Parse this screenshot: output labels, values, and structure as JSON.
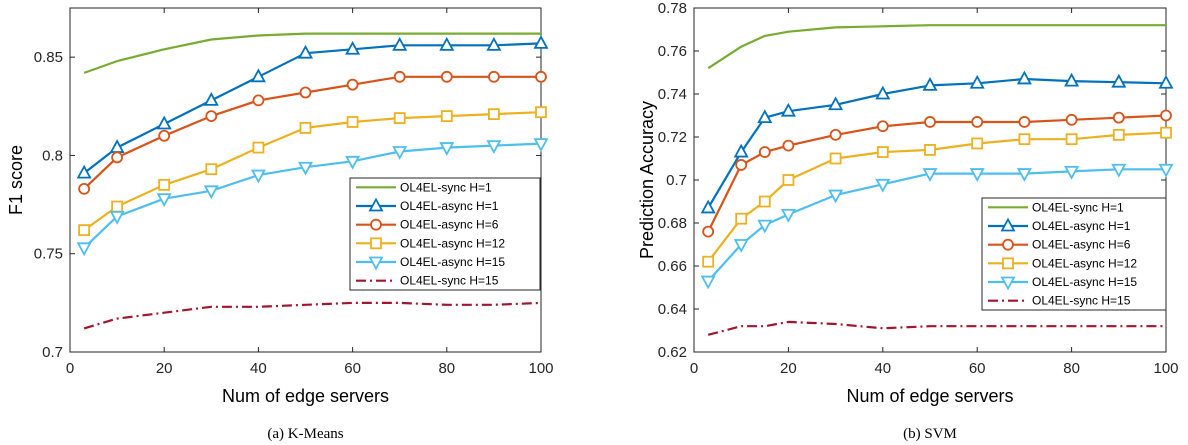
{
  "chart_data": [
    {
      "type": "line",
      "caption": "(a)  K-Means",
      "xlabel": "Num of edge servers",
      "ylabel": "F1 score",
      "xlim": [
        0,
        100
      ],
      "ylim": [
        0.7,
        0.875
      ],
      "xticks": [
        0,
        20,
        40,
        60,
        80,
        100
      ],
      "yticks": [
        0.7,
        0.75,
        0.8,
        0.85
      ],
      "ytick_labels": [
        "0.7",
        "0.75",
        "0.8",
        "0.85"
      ],
      "grid": false,
      "legend_position": "right",
      "x": [
        3,
        10,
        20,
        30,
        40,
        50,
        60,
        70,
        80,
        90,
        100
      ],
      "series": [
        {
          "name": "OL4EL-sync H=1",
          "color": "#77AC30",
          "style": "solid",
          "marker": "none",
          "values": [
            0.842,
            0.848,
            0.854,
            0.859,
            0.861,
            0.862,
            0.862,
            0.862,
            0.862,
            0.862,
            0.862
          ]
        },
        {
          "name": "OL4EL-async H=1",
          "color": "#0072BD",
          "style": "solid",
          "marker": "triangle-up",
          "values": [
            0.791,
            0.804,
            0.816,
            0.828,
            0.84,
            0.852,
            0.854,
            0.856,
            0.856,
            0.856,
            0.857
          ]
        },
        {
          "name": "OL4EL-async H=6",
          "color": "#D95319",
          "style": "solid",
          "marker": "circle",
          "values": [
            0.783,
            0.799,
            0.81,
            0.82,
            0.828,
            0.832,
            0.836,
            0.84,
            0.84,
            0.84,
            0.84
          ]
        },
        {
          "name": "OL4EL-async H=12",
          "color": "#EDB120",
          "style": "solid",
          "marker": "square",
          "values": [
            0.762,
            0.774,
            0.785,
            0.793,
            0.804,
            0.814,
            0.817,
            0.819,
            0.82,
            0.821,
            0.822
          ]
        },
        {
          "name": "OL4EL-async H=15",
          "color": "#4DBEEE",
          "style": "solid",
          "marker": "triangle-down",
          "values": [
            0.753,
            0.769,
            0.778,
            0.782,
            0.79,
            0.794,
            0.797,
            0.802,
            0.804,
            0.805,
            0.806
          ]
        },
        {
          "name": "OL4EL-sync H=15",
          "color": "#A2142F",
          "style": "dashdot",
          "marker": "none",
          "values": [
            0.712,
            0.717,
            0.72,
            0.723,
            0.723,
            0.724,
            0.725,
            0.725,
            0.724,
            0.724,
            0.725
          ]
        }
      ]
    },
    {
      "type": "line",
      "caption": "(b)  SVM",
      "xlabel": "Num of edge servers",
      "ylabel": "Prediction Accuracy",
      "xlim": [
        0,
        100
      ],
      "ylim": [
        0.62,
        0.78
      ],
      "xticks": [
        0,
        20,
        40,
        60,
        80,
        100
      ],
      "yticks": [
        0.62,
        0.64,
        0.66,
        0.68,
        0.7,
        0.72,
        0.74,
        0.76,
        0.78
      ],
      "ytick_labels": [
        "0.62",
        "0.64",
        "0.66",
        "0.68",
        "0.7",
        "0.72",
        "0.74",
        "0.76",
        "0.78"
      ],
      "grid": false,
      "legend_position": "right",
      "x": [
        3,
        10,
        15,
        20,
        30,
        40,
        50,
        60,
        70,
        80,
        90,
        100
      ],
      "series": [
        {
          "name": "OL4EL-sync H=1",
          "color": "#77AC30",
          "style": "solid",
          "marker": "none",
          "values": [
            0.752,
            0.762,
            0.767,
            0.769,
            0.771,
            0.7715,
            0.772,
            0.772,
            0.772,
            0.772,
            0.772,
            0.772
          ]
        },
        {
          "name": "OL4EL-async H=1",
          "color": "#0072BD",
          "style": "solid",
          "marker": "triangle-up",
          "values": [
            0.687,
            0.713,
            0.729,
            0.732,
            0.735,
            0.74,
            0.744,
            0.745,
            0.747,
            0.746,
            0.7455,
            0.745
          ]
        },
        {
          "name": "OL4EL-async H=6",
          "color": "#D95319",
          "style": "solid",
          "marker": "circle",
          "values": [
            0.676,
            0.707,
            0.713,
            0.716,
            0.721,
            0.725,
            0.727,
            0.727,
            0.727,
            0.728,
            0.729,
            0.73
          ]
        },
        {
          "name": "OL4EL-async H=12",
          "color": "#EDB120",
          "style": "solid",
          "marker": "square",
          "values": [
            0.662,
            0.682,
            0.69,
            0.7,
            0.71,
            0.713,
            0.714,
            0.717,
            0.719,
            0.719,
            0.721,
            0.722
          ]
        },
        {
          "name": "OL4EL-async H=15",
          "color": "#4DBEEE",
          "style": "solid",
          "marker": "triangle-down",
          "values": [
            0.653,
            0.67,
            0.679,
            0.684,
            0.693,
            0.698,
            0.703,
            0.703,
            0.703,
            0.704,
            0.705,
            0.705
          ]
        },
        {
          "name": "OL4EL-sync H=15",
          "color": "#A2142F",
          "style": "dashdot",
          "marker": "none",
          "values": [
            0.628,
            0.632,
            0.632,
            0.634,
            0.633,
            0.631,
            0.632,
            0.632,
            0.632,
            0.632,
            0.632,
            0.632
          ]
        }
      ]
    }
  ]
}
